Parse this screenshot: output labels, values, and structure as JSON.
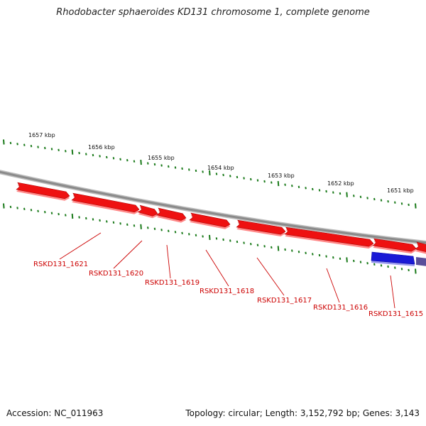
{
  "title": "Rhodobacter sphaeroides KD131 chromosome 1, complete genome",
  "footer": {
    "accession": "Accession: NC_011963",
    "summary": "Topology: circular; Length: 3,152,792 bp; Genes: 3,143"
  },
  "colors": {
    "forward_gene": "#ee1111",
    "reverse_gene": "#1a1ad6",
    "scale_ticks": "#1a7a1a",
    "backbone": "#8a8a8a",
    "label": "#cc0000"
  },
  "scale_labels": [
    "1657 kbp",
    "1656 kbp",
    "1655 kbp",
    "1654 kbp",
    "1653 kbp",
    "1652 kbp",
    "1651 kbp"
  ],
  "genes": [
    {
      "label": "RSKD131_1621",
      "strand": "forward"
    },
    {
      "label": "RSKD131_1620",
      "strand": "forward"
    },
    {
      "label": "RSKD131_1619",
      "strand": "forward"
    },
    {
      "label": "RSKD131_1618",
      "strand": "forward"
    },
    {
      "label": "RSKD131_1617",
      "strand": "forward"
    },
    {
      "label": "RSKD131_1616",
      "strand": "forward"
    },
    {
      "label": "RSKD131_1615",
      "strand": "reverse"
    }
  ]
}
